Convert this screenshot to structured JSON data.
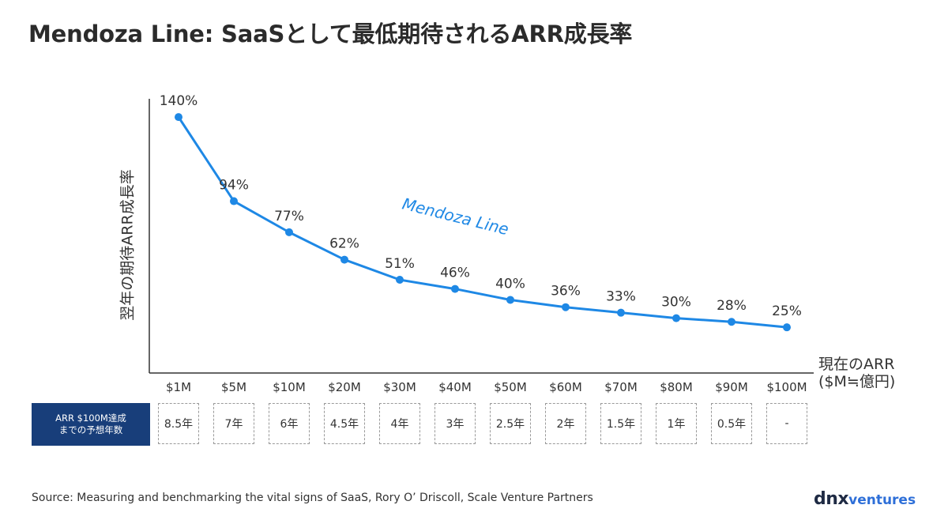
{
  "title": "Mendoza Line: SaaSとして最低期待されるARR成長率",
  "chart_data": {
    "type": "line",
    "ylabel": "翌年の期待ARR成長率",
    "xlabel_lines": [
      "現在のARR",
      "($M≒億円)"
    ],
    "categories": [
      "$1M",
      "$5M",
      "$10M",
      "$20M",
      "$30M",
      "$40M",
      "$50M",
      "$60M",
      "$70M",
      "$80M",
      "$90M",
      "$100M"
    ],
    "series": [
      {
        "name": "Mendoza Line",
        "values": [
          140,
          94,
          77,
          62,
          51,
          46,
          40,
          36,
          33,
          30,
          28,
          25
        ],
        "labels": [
          "140%",
          "94%",
          "77%",
          "62%",
          "51%",
          "46%",
          "40%",
          "36%",
          "33%",
          "30%",
          "28%",
          "25%"
        ],
        "color": "#1e88e5"
      }
    ],
    "ylim": [
      0,
      150
    ],
    "grid": false
  },
  "years_row": {
    "label_line1": "ARR $100M達成",
    "label_line2": "までの予想年数",
    "values": [
      "8.5年",
      "7年",
      "6年",
      "4.5年",
      "4年",
      "3年",
      "2.5年",
      "2年",
      "1.5年",
      "1年",
      "0.5年",
      "-"
    ]
  },
  "source": "Source: Measuring and benchmarking the vital signs of SaaS, Rory O’ Driscoll, Scale Venture Partners",
  "logo": {
    "part1": "dnx",
    "part2": "ventures"
  },
  "colors": {
    "line": "#1e88e5",
    "label_box": "#183e7a",
    "axis": "#333333"
  }
}
